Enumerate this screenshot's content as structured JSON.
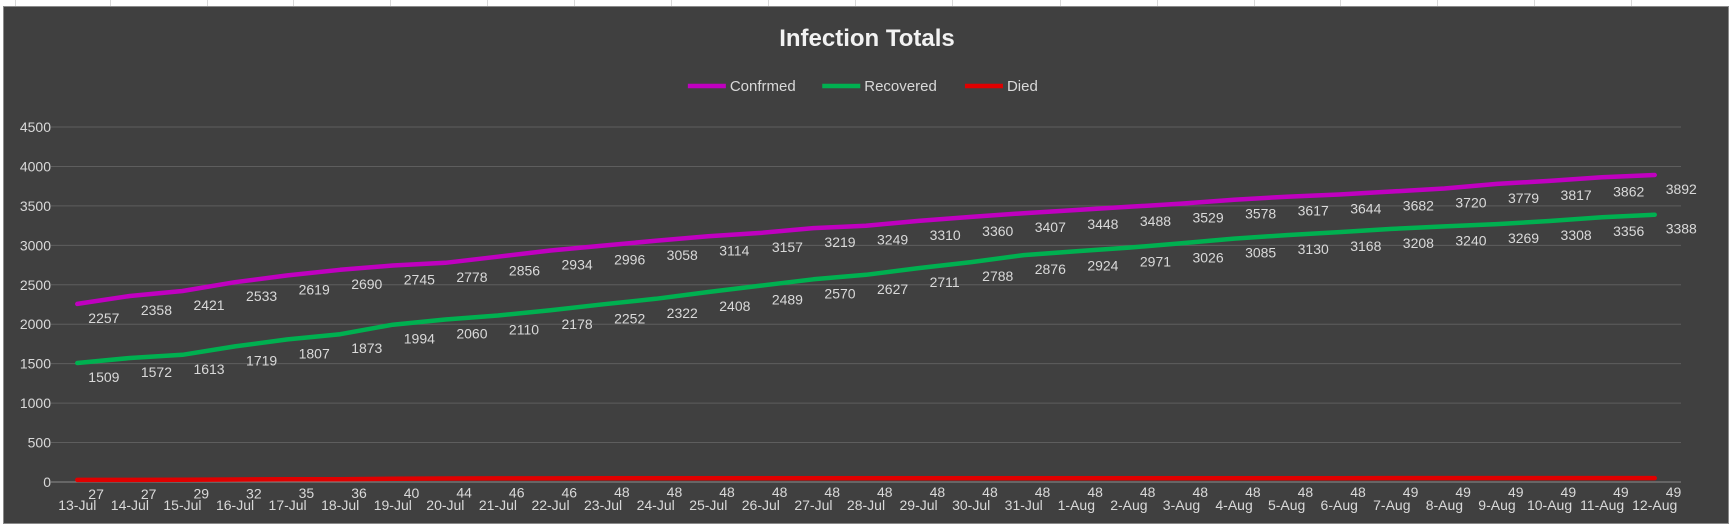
{
  "chart_data": {
    "type": "line",
    "title": "Infection Totals",
    "xlabel": "",
    "ylabel": "",
    "ylim": [
      0,
      4500
    ],
    "yticks": [
      0,
      500,
      1000,
      1500,
      2000,
      2500,
      3000,
      3500,
      4000,
      4500
    ],
    "grid": true,
    "legend_position": "top",
    "categories": [
      "13-Jul",
      "14-Jul",
      "15-Jul",
      "16-Jul",
      "17-Jul",
      "18-Jul",
      "19-Jul",
      "20-Jul",
      "21-Jul",
      "22-Jul",
      "23-Jul",
      "24-Jul",
      "25-Jul",
      "26-Jul",
      "27-Jul",
      "28-Jul",
      "29-Jul",
      "30-Jul",
      "31-Jul",
      "1-Aug",
      "2-Aug",
      "3-Aug",
      "4-Aug",
      "5-Aug",
      "6-Aug",
      "7-Aug",
      "8-Aug",
      "9-Aug",
      "10-Aug",
      "11-Aug",
      "12-Aug"
    ],
    "series": [
      {
        "name": "Confrmed",
        "color": "#c000c0",
        "values": [
          2257,
          2358,
          2421,
          2533,
          2619,
          2690,
          2745,
          2778,
          2856,
          2934,
          2996,
          3058,
          3114,
          3157,
          3219,
          3249,
          3310,
          3360,
          3407,
          3448,
          3488,
          3529,
          3578,
          3617,
          3644,
          3682,
          3720,
          3779,
          3817,
          3862,
          3892
        ]
      },
      {
        "name": "Recovered",
        "color": "#00b050",
        "values": [
          1509,
          1572,
          1613,
          1719,
          1807,
          1873,
          1994,
          2060,
          2110,
          2178,
          2252,
          2322,
          2408,
          2489,
          2570,
          2627,
          2711,
          2788,
          2876,
          2924,
          2971,
          3026,
          3085,
          3130,
          3168,
          3208,
          3240,
          3269,
          3308,
          3356,
          3388
        ]
      },
      {
        "name": "Died",
        "color": "#e00000",
        "values": [
          27,
          27,
          29,
          32,
          35,
          36,
          40,
          44,
          46,
          46,
          48,
          48,
          48,
          48,
          48,
          48,
          48,
          48,
          48,
          48,
          48,
          48,
          48,
          48,
          48,
          49,
          49,
          49,
          49,
          49,
          49
        ]
      }
    ]
  }
}
